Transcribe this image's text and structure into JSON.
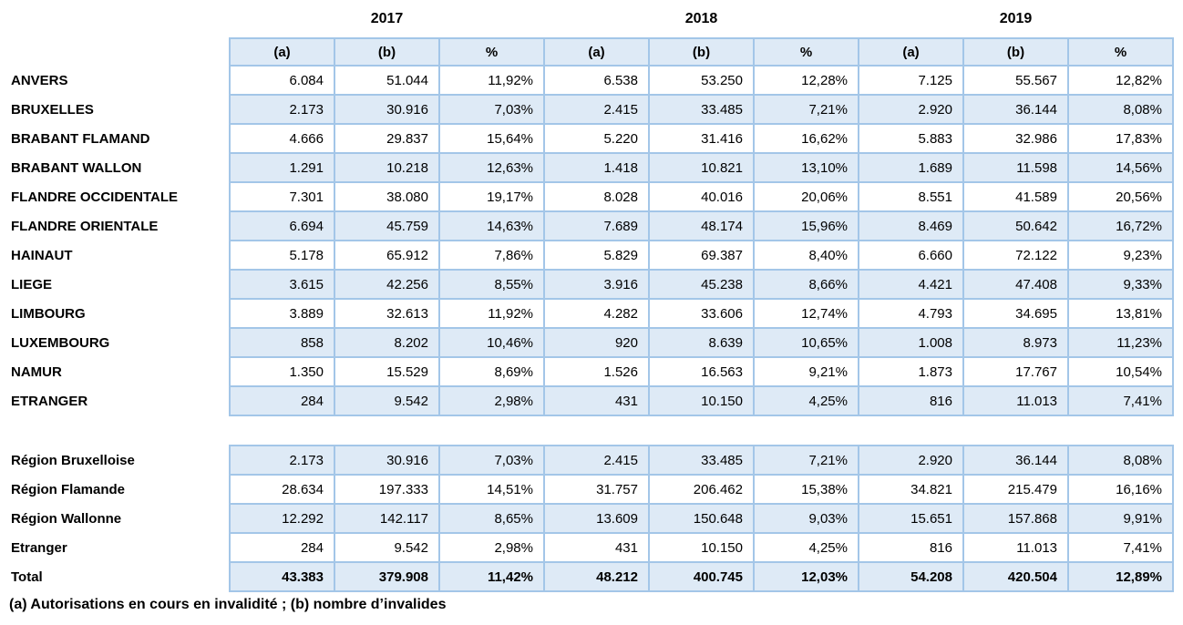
{
  "header": {
    "years": [
      "2017",
      "2018",
      "2019"
    ],
    "sub_columns": [
      "(a)",
      "(b)",
      "%"
    ]
  },
  "table1": {
    "rows": [
      {
        "label": "ANVERS",
        "values": [
          "6.084",
          "51.044",
          "11,92%",
          "6.538",
          "53.250",
          "12,28%",
          "7.125",
          "55.567",
          "12,82%"
        ]
      },
      {
        "label": "BRUXELLES",
        "values": [
          "2.173",
          "30.916",
          "7,03%",
          "2.415",
          "33.485",
          "7,21%",
          "2.920",
          "36.144",
          "8,08%"
        ]
      },
      {
        "label": "BRABANT FLAMAND",
        "values": [
          "4.666",
          "29.837",
          "15,64%",
          "5.220",
          "31.416",
          "16,62%",
          "5.883",
          "32.986",
          "17,83%"
        ]
      },
      {
        "label": "BRABANT WALLON",
        "values": [
          "1.291",
          "10.218",
          "12,63%",
          "1.418",
          "10.821",
          "13,10%",
          "1.689",
          "11.598",
          "14,56%"
        ]
      },
      {
        "label": "FLANDRE OCCIDENTALE",
        "values": [
          "7.301",
          "38.080",
          "19,17%",
          "8.028",
          "40.016",
          "20,06%",
          "8.551",
          "41.589",
          "20,56%"
        ]
      },
      {
        "label": "FLANDRE ORIENTALE",
        "values": [
          "6.694",
          "45.759",
          "14,63%",
          "7.689",
          "48.174",
          "15,96%",
          "8.469",
          "50.642",
          "16,72%"
        ]
      },
      {
        "label": "HAINAUT",
        "values": [
          "5.178",
          "65.912",
          "7,86%",
          "5.829",
          "69.387",
          "8,40%",
          "6.660",
          "72.122",
          "9,23%"
        ]
      },
      {
        "label": "LIEGE",
        "values": [
          "3.615",
          "42.256",
          "8,55%",
          "3.916",
          "45.238",
          "8,66%",
          "4.421",
          "47.408",
          "9,33%"
        ]
      },
      {
        "label": "LIMBOURG",
        "values": [
          "3.889",
          "32.613",
          "11,92%",
          "4.282",
          "33.606",
          "12,74%",
          "4.793",
          "34.695",
          "13,81%"
        ]
      },
      {
        "label": "LUXEMBOURG",
        "values": [
          "858",
          "8.202",
          "10,46%",
          "920",
          "8.639",
          "10,65%",
          "1.008",
          "8.973",
          "11,23%"
        ]
      },
      {
        "label": "NAMUR",
        "values": [
          "1.350",
          "15.529",
          "8,69%",
          "1.526",
          "16.563",
          "9,21%",
          "1.873",
          "17.767",
          "10,54%"
        ]
      },
      {
        "label": "ETRANGER",
        "values": [
          "284",
          "9.542",
          "2,98%",
          "431",
          "10.150",
          "4,25%",
          "816",
          "11.013",
          "7,41%"
        ]
      }
    ]
  },
  "table2": {
    "rows": [
      {
        "label": "Région Bruxelloise",
        "values": [
          "2.173",
          "30.916",
          "7,03%",
          "2.415",
          "33.485",
          "7,21%",
          "2.920",
          "36.144",
          "8,08%"
        ]
      },
      {
        "label": "Région Flamande",
        "values": [
          "28.634",
          "197.333",
          "14,51%",
          "31.757",
          "206.462",
          "15,38%",
          "34.821",
          "215.479",
          "16,16%"
        ]
      },
      {
        "label": "Région Wallonne",
        "values": [
          "12.292",
          "142.117",
          "8,65%",
          "13.609",
          "150.648",
          "9,03%",
          "15.651",
          "157.868",
          "9,91%"
        ]
      },
      {
        "label": "Etranger",
        "values": [
          "284",
          "9.542",
          "2,98%",
          "431",
          "10.150",
          "4,25%",
          "816",
          "11.013",
          "7,41%"
        ]
      },
      {
        "label": "Total",
        "values": [
          "43.383",
          "379.908",
          "11,42%",
          "48.212",
          "400.745",
          "12,03%",
          "54.208",
          "420.504",
          "12,89%"
        ]
      }
    ]
  },
  "footnote": "(a) Autorisations en cours en invalidité ; (b) nombre d’invalides",
  "colors": {
    "row_shade": "#deeaf6",
    "border": "#a3c6e8",
    "text": "#000000"
  }
}
